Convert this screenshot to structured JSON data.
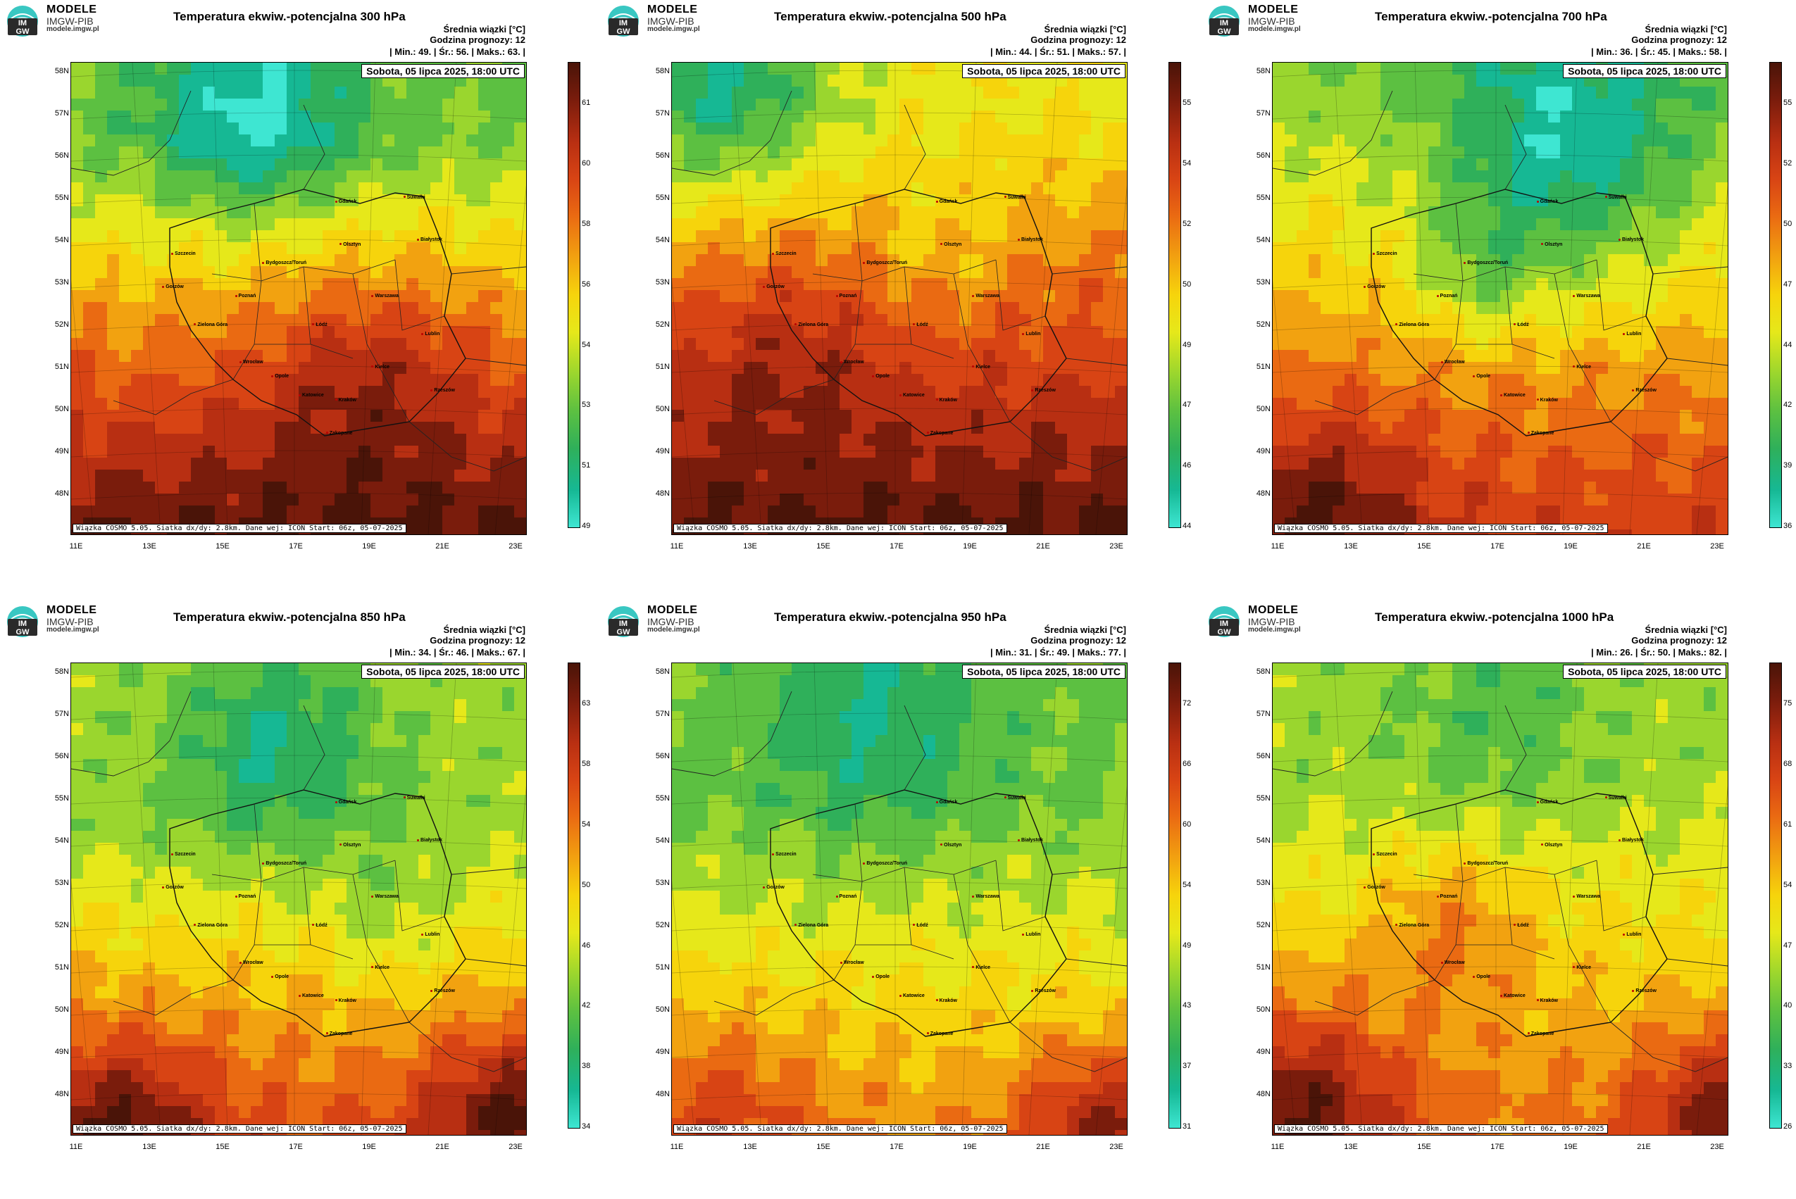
{
  "brand": {
    "name": "MODELE",
    "org": "IMGW-PIB",
    "url": "modele.imgw.pl",
    "logo_text": "IM GW"
  },
  "common": {
    "unit_line": "Średnia wiązki [°C]",
    "forecast_hour": "Godzina prognozy: 12",
    "date_box": "Sobota, 05 lipca 2025, 18:00 UTC",
    "footer": "Wiązka COSMO 5.05. Siatka dx/dy: 2.8km. Dane wej: ICON Start: 06z, 05-07-2025"
  },
  "lat_labels": [
    "58N",
    "57N",
    "56N",
    "55N",
    "54N",
    "53N",
    "52N",
    "51N",
    "50N",
    "49N",
    "48N"
  ],
  "lon_labels": [
    "11E",
    "13E",
    "15E",
    "17E",
    "19E",
    "21E",
    "23E"
  ],
  "cities": [
    "Gdańsk",
    "Suwałki",
    "Olsztyn",
    "Białystok",
    "Szczecin",
    "Bydgoszcz/Toruń",
    "Gorzów",
    "Poznań",
    "Warszawa",
    "Łódź",
    "Zielona Góra",
    "Lublin",
    "Wrocław",
    "Kielce",
    "Opole",
    "Rzeszów",
    "Katowice",
    "Kraków",
    "Zakopane"
  ],
  "colors": {
    "scale": [
      "#3ee6d2",
      "#16b894",
      "#2fb05a",
      "#5cc041",
      "#9ad62e",
      "#e6e81a",
      "#f6d40c",
      "#f2a210",
      "#ea6a12",
      "#d84414",
      "#b82f12",
      "#7a1c0c",
      "#4a1408"
    ]
  },
  "panels": [
    {
      "title": "Temperatura ekwiw.-potencjalna 300 hPa",
      "stats": "| Min.:   49. | Śr.:   56. | Maks.:   63. |",
      "colorbar_ticks": [
        "61",
        "60",
        "58",
        "56",
        "54",
        "53",
        "51",
        "49"
      ],
      "min": 49,
      "mean": 56,
      "max": 63
    },
    {
      "title": "Temperatura ekwiw.-potencjalna 500 hPa",
      "stats": "| Min.:   44. | Śr.:   51. | Maks.:   57. |",
      "colorbar_ticks": [
        "55",
        "54",
        "52",
        "50",
        "49",
        "47",
        "46",
        "44"
      ],
      "min": 44,
      "mean": 51,
      "max": 57
    },
    {
      "title": "Temperatura ekwiw.-potencjalna 700 hPa",
      "stats": "| Min.:   36. | Śr.:   45. | Maks.:   58. |",
      "colorbar_ticks": [
        "55",
        "52",
        "50",
        "47",
        "44",
        "42",
        "39",
        "36"
      ],
      "min": 36,
      "mean": 45,
      "max": 58
    },
    {
      "title": "Temperatura ekwiw.-potencjalna 850 hPa",
      "stats": "| Min.:   34. | Śr.:   46. | Maks.:   67. |",
      "colorbar_ticks": [
        "63",
        "58",
        "54",
        "50",
        "46",
        "42",
        "38",
        "34"
      ],
      "min": 34,
      "mean": 46,
      "max": 67
    },
    {
      "title": "Temperatura ekwiw.-potencjalna 950 hPa",
      "stats": "| Min.:   31. | Śr.:   49. | Maks.:   77. |",
      "colorbar_ticks": [
        "72",
        "66",
        "60",
        "54",
        "49",
        "43",
        "37",
        "31"
      ],
      "min": 31,
      "mean": 49,
      "max": 77
    },
    {
      "title": "Temperatura ekwiw.-potencjalna 1000 hPa",
      "stats": "| Min.:   26. | Śr.:   50. | Maks.:   82. |",
      "colorbar_ticks": [
        "75",
        "68",
        "61",
        "54",
        "47",
        "40",
        "33",
        "26"
      ],
      "min": 26,
      "mean": 50,
      "max": 82
    }
  ]
}
